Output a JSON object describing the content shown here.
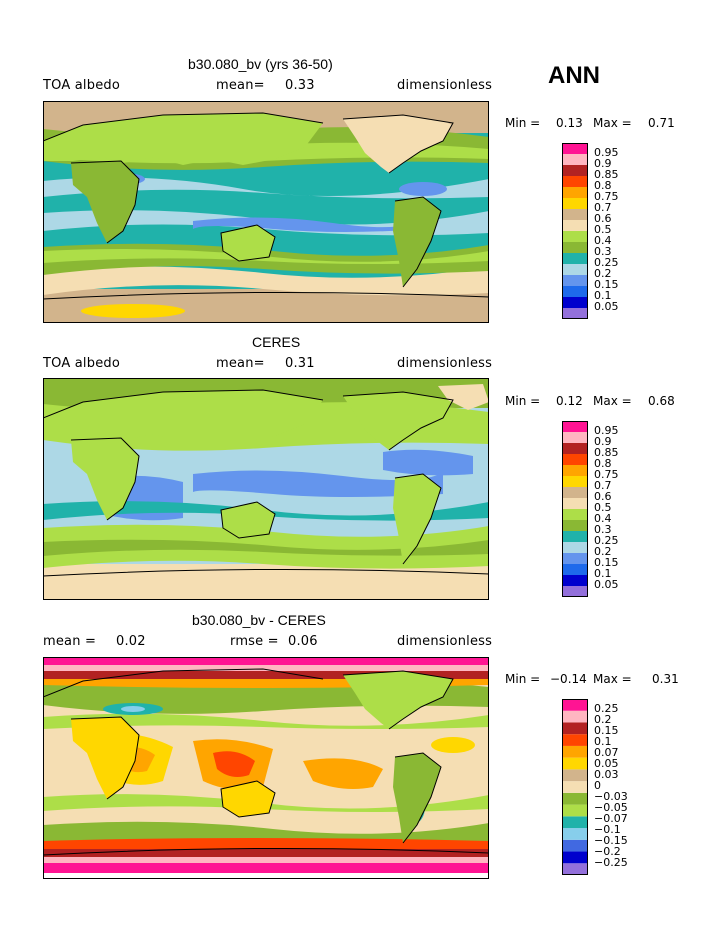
{
  "season": "ANN",
  "colors": {
    "abs": [
      "#9370db",
      "#0000cd",
      "#1e6aeb",
      "#6495ed",
      "#add8e6",
      "#20b2aa",
      "#8ab834",
      "#adde48",
      "#f5deb3",
      "#d2b48c",
      "#ffd700",
      "#ffa500",
      "#ff4500",
      "#b22222",
      "#ffb6c1",
      "#ff1493"
    ],
    "diff": [
      "#9370db",
      "#0000cd",
      "#4169e1",
      "#87ceeb",
      "#20b2aa",
      "#adde48",
      "#8ab834",
      "#f5deb3",
      "#d2b48c",
      "#ffd700",
      "#ffa500",
      "#ff4500",
      "#b22222",
      "#ffb6c1",
      "#ff1493"
    ]
  },
  "panels": [
    {
      "title": "b30.080_bv (yrs 36-50)",
      "left_label": "TOA albedo",
      "mean_label": "mean=",
      "mean_value": "0.33",
      "units": "dimensionless",
      "min_label": "Min =",
      "min_value": "0.13",
      "max_label": "Max =",
      "max_value": "0.71",
      "legend": [
        "0.95",
        "0.9",
        "0.85",
        "0.8",
        "0.75",
        "0.7",
        "0.6",
        "0.5",
        "0.4",
        "0.3",
        "0.25",
        "0.2",
        "0.15",
        "0.1",
        "0.05"
      ]
    },
    {
      "title": "CERES",
      "left_label": "TOA albedo",
      "mean_label": "mean=",
      "mean_value": "0.31",
      "units": "dimensionless",
      "min_label": "Min =",
      "min_value": "0.12",
      "max_label": "Max =",
      "max_value": "0.68",
      "legend": [
        "0.95",
        "0.9",
        "0.85",
        "0.8",
        "0.75",
        "0.7",
        "0.6",
        "0.5",
        "0.4",
        "0.3",
        "0.25",
        "0.2",
        "0.15",
        "0.1",
        "0.05"
      ]
    },
    {
      "title": "b30.080_bv - CERES",
      "left_label": "mean =",
      "mean_value_left": "0.02",
      "mean_label": "rmse =",
      "mean_value": "0.06",
      "units": "dimensionless",
      "min_label": "Min =",
      "min_value": "−0.14",
      "max_label": "Max =",
      "max_value": "0.31",
      "legend": [
        "0.25",
        "0.2",
        "0.15",
        "0.1",
        "0.07",
        "0.05",
        "0.03",
        "0",
        "−0.03",
        "−0.05",
        "−0.07",
        "−0.1",
        "−0.15",
        "−0.2",
        "−0.25"
      ]
    }
  ]
}
